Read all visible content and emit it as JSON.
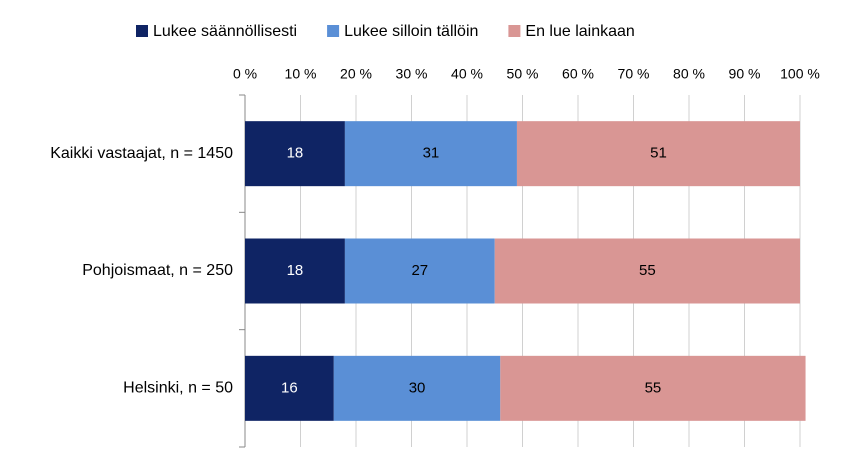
{
  "chart_data": {
    "type": "stacked-barh",
    "categories": [
      "Kaikki vastaajat, n = 1450",
      "Pohjoismaat, n = 250",
      "Helsinki, n = 50"
    ],
    "series": [
      {
        "name": "Lukee säännöllisesti",
        "color": "#0f2464",
        "label_color": "#ffffff",
        "values": [
          18,
          18,
          16
        ]
      },
      {
        "name": "Lukee silloin tällöin",
        "color": "#5a8fd6",
        "label_color": "#000000",
        "values": [
          31,
          27,
          30
        ]
      },
      {
        "name": "En lue lainkaan",
        "color": "#d99694",
        "label_color": "#000000",
        "values": [
          51,
          55,
          55
        ]
      }
    ],
    "xlim": [
      0,
      100
    ],
    "xticks": [
      {
        "value": 0,
        "label": "0 %"
      },
      {
        "value": 10,
        "label": "10 %"
      },
      {
        "value": 20,
        "label": "20 %"
      },
      {
        "value": 30,
        "label": "30 %"
      },
      {
        "value": 40,
        "label": "40 %"
      },
      {
        "value": 50,
        "label": "50 %"
      },
      {
        "value": 60,
        "label": "60 %"
      },
      {
        "value": 70,
        "label": "70 %"
      },
      {
        "value": 80,
        "label": "80 %"
      },
      {
        "value": 90,
        "label": "90 %"
      },
      {
        "value": 100,
        "label": "100 %"
      }
    ],
    "grid": true,
    "legend": "top"
  }
}
